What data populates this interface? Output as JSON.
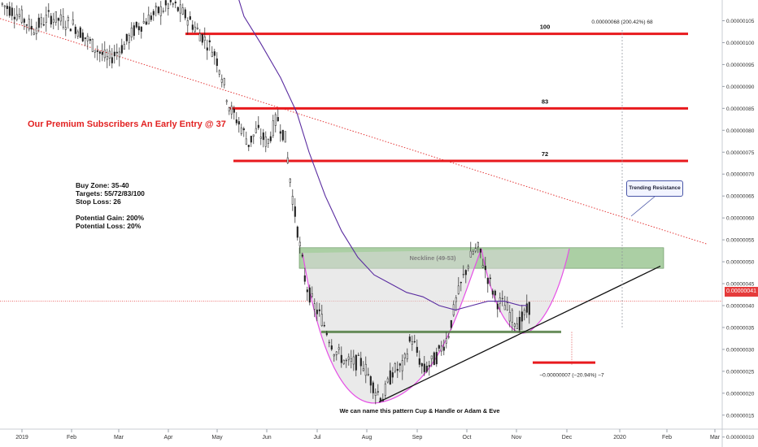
{
  "chart_data": {
    "type": "candlestick",
    "x_axis": {
      "tick_labels": [
        "2019",
        "Feb",
        "Mar",
        "Apr",
        "May",
        "Jun",
        "Jul",
        "Aug",
        "Sep",
        "Oct",
        "Nov",
        "Dec",
        "2020",
        "Feb",
        "Mar"
      ]
    },
    "y_axis": {
      "tick_labels": [
        "0.00000105",
        "0.00000100",
        "0.00000095",
        "0.00000090",
        "0.00000085",
        "0.00000080",
        "0.00000075",
        "0.00000070",
        "0.00000065",
        "0.00000060",
        "0.00000055",
        "0.00000050",
        "0.00000045",
        "0.00000040",
        "0.00000035",
        "0.00000030",
        "0.00000025",
        "0.00000020",
        "0.00000015",
        "0.00000010"
      ],
      "tick_values": [
        105,
        100,
        95,
        90,
        85,
        80,
        75,
        70,
        65,
        60,
        55,
        50,
        45,
        40,
        35,
        30,
        25,
        20,
        15,
        10
      ],
      "unit_scale": "1e-8",
      "range": [
        8,
        109
      ]
    },
    "current_price_label": "0.00000041",
    "current_price": 41,
    "target_lines": [
      {
        "label": "100",
        "value": 102
      },
      {
        "label": "83",
        "value": 85
      },
      {
        "label": "72",
        "value": 73
      }
    ],
    "neckline_zone": {
      "label": "Neckline (49-53)",
      "low": 48.5,
      "high": 53.2
    },
    "support_line_value": 34,
    "stop_line_value": 27,
    "measure_up_label": "0.00000068 (200.42%) 68",
    "measure_down_label": "−0.00000007 (−20.94%) −7",
    "pattern_label": "We can name this pattern Cup & Handle or Adam & Eve",
    "callout": "Trending Resistance",
    "headline": "Our Premium Subscribers An Early Entry @ 37",
    "trade_notes": [
      "Buy Zone: 35-40",
      "Targets: 55/72/83/100",
      "Stop Loss: 26",
      "",
      "Potential Gain: 200%",
      "Potential Loss: 20%"
    ],
    "price_series_approx": [
      {
        "month": "Jan",
        "value": 107
      },
      {
        "month": "Feb",
        "value": 101
      },
      {
        "month": "Mar",
        "value": 100
      },
      {
        "month": "Apr",
        "value": 106
      },
      {
        "month": "May",
        "value": 99
      },
      {
        "month": "May-end",
        "value": 83
      },
      {
        "month": "Jun",
        "value": 79
      },
      {
        "month": "Jun-end",
        "value": 68
      },
      {
        "month": "Jul",
        "value": 36
      },
      {
        "month": "Aug",
        "value": 20
      },
      {
        "month": "Sep",
        "value": 26
      },
      {
        "month": "Sep-end",
        "value": 40
      },
      {
        "month": "Oct",
        "value": 53
      },
      {
        "month": "Oct-end",
        "value": 42
      },
      {
        "month": "Nov",
        "value": 36
      },
      {
        "month": "Nov-now",
        "value": 41
      }
    ],
    "colors": {
      "target_line": "#e8191d",
      "neckline_fill": "#8fbf86",
      "support_line": "#4f7a3f",
      "moving_average": "#5a2ca0",
      "cup_curve": "#e64fe6",
      "resistance": "#e43a3a",
      "candles": "#222222",
      "current_price": "#e53b3b"
    }
  }
}
